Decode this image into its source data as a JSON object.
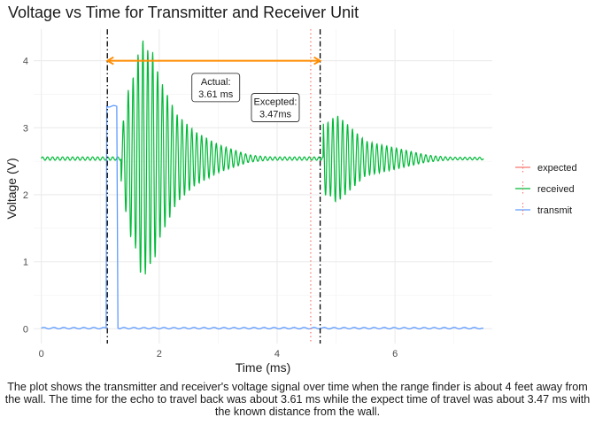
{
  "chart_data": {
    "type": "line",
    "title": "Voltage vs Time for Transmitter and Receiver Unit",
    "xlabel": "Time (ms)",
    "ylabel": "Voltage (V)",
    "xlim": [
      -0.13,
      7.65
    ],
    "ylim": [
      -0.22,
      4.47
    ],
    "x_ticks": [
      0,
      2,
      4,
      6
    ],
    "y_ticks": [
      0,
      1,
      2,
      3,
      4
    ],
    "grid": true,
    "legend_position": "right",
    "legend": [
      {
        "name": "expected",
        "color": "#F8766D",
        "style": "dotted"
      },
      {
        "name": "received",
        "color": "#00BA38",
        "style": "solid"
      },
      {
        "name": "transmit",
        "color": "#619CFF",
        "style": "solid"
      }
    ],
    "series": [
      {
        "name": "transmit",
        "points": [
          [
            0.0,
            0.01
          ],
          [
            1.1,
            0.01
          ],
          [
            1.11,
            3.32
          ],
          [
            1.28,
            3.32
          ],
          [
            1.3,
            0.01
          ],
          [
            7.5,
            0.01
          ]
        ]
      },
      {
        "name": "received",
        "baseline": 2.54,
        "points": [
          [
            1.35,
            2.2
          ],
          [
            1.5,
            3.7
          ],
          [
            1.58,
            1.3
          ],
          [
            1.67,
            4.25
          ],
          [
            1.74,
            0.75
          ],
          [
            1.82,
            4.13
          ],
          [
            1.9,
            0.95
          ],
          [
            2.0,
            3.75
          ],
          [
            2.3,
            3.2
          ],
          [
            2.6,
            2.95
          ],
          [
            3.0,
            2.75
          ],
          [
            3.5,
            2.6
          ]
        ],
        "echo_points": [
          [
            4.78,
            3.1
          ],
          [
            4.88,
            2.0
          ],
          [
            5.0,
            3.2
          ],
          [
            5.1,
            1.95
          ],
          [
            5.5,
            2.8
          ],
          [
            6.5,
            2.6
          ]
        ],
        "end_x": 7.5
      },
      {
        "name": "expected",
        "vline_x": 4.57
      }
    ],
    "vlines": [
      {
        "x": 1.12,
        "color": "#000000",
        "style": "dashdot"
      },
      {
        "x": 4.73,
        "color": "#000000",
        "style": "dashdot"
      },
      {
        "x": 4.57,
        "color": "#F8766D",
        "style": "dotted"
      }
    ],
    "arrow": {
      "x_start": 1.12,
      "x_end": 4.73,
      "y": 4.0,
      "color": "#FF8C00"
    },
    "annotations": [
      {
        "lines": [
          "Actual:",
          "3.61 ms"
        ],
        "x": 2.96,
        "y": 3.6
      },
      {
        "lines": [
          "Excepted:",
          "3.47ms"
        ],
        "x": 3.97,
        "y": 3.3
      }
    ]
  },
  "caption": "The plot shows the transmitter and receiver's voltage signal over time when the range finder is about 4 feet away from the wall. The time for the echo to travel back was about 3.61 ms while the expect time of travel was about 3.47 ms with the known distance from the wall."
}
